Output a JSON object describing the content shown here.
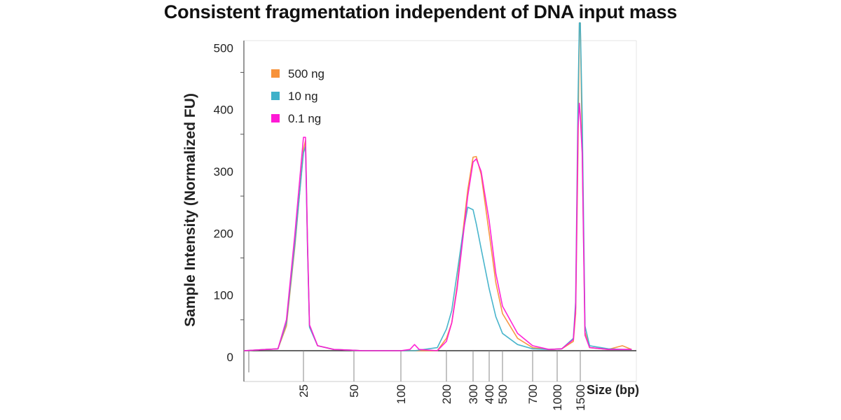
{
  "title": "Consistent fragmentation independent of DNA input mass",
  "chart_data": {
    "type": "line",
    "title": "Consistent fragmentation independent of DNA input mass",
    "xlabel": "Size (bp)",
    "ylabel": "Sample Intensity (Normalized FU)",
    "x_scale": "nonlinear (electrophoresis size ladder)",
    "x_ticks": [
      25,
      50,
      100,
      200,
      300,
      400,
      500,
      700,
      1000,
      1500
    ],
    "y_ticks": [
      0,
      100,
      200,
      300,
      400,
      500
    ],
    "ylim": [
      -35,
      530
    ],
    "grid": false,
    "legend_position": "top-left",
    "colors": {
      "500 ng": "#f7923a",
      "10 ng": "#3fb1c9",
      "0.1 ng": "#ff19d5"
    },
    "series": [
      {
        "name": "500 ng",
        "x": [
          18,
          22,
          23,
          24,
          25,
          26,
          27,
          28,
          32,
          40,
          60,
          80,
          100,
          130,
          180,
          200,
          220,
          240,
          260,
          280,
          300,
          320,
          350,
          400,
          450,
          500,
          600,
          700,
          900,
          1100,
          1350,
          1400,
          1450,
          1480,
          1500,
          1520,
          1550,
          1600,
          1800,
          1950,
          2050
        ],
        "y": [
          0,
          3,
          40,
          170,
          325,
          340,
          170,
          40,
          8,
          2,
          0,
          0,
          0,
          0,
          0,
          20,
          45,
          105,
          185,
          260,
          313,
          314,
          285,
          190,
          110,
          60,
          20,
          5,
          2,
          3,
          15,
          60,
          320,
          530,
          530,
          330,
          30,
          5,
          2,
          8,
          2
        ]
      },
      {
        "name": "10 ng",
        "x": [
          18,
          22,
          23,
          24,
          25,
          26,
          27,
          28,
          32,
          40,
          60,
          80,
          100,
          130,
          180,
          200,
          220,
          240,
          260,
          280,
          300,
          320,
          350,
          400,
          450,
          500,
          600,
          700,
          900,
          1100,
          1350,
          1400,
          1450,
          1480,
          1500,
          1520,
          1550,
          1600,
          1800,
          1950,
          2050
        ],
        "y": [
          0,
          3,
          45,
          175,
          320,
          330,
          165,
          38,
          8,
          2,
          0,
          0,
          0,
          0,
          5,
          35,
          65,
          125,
          185,
          232,
          228,
          205,
          165,
          100,
          55,
          28,
          10,
          3,
          2,
          3,
          20,
          80,
          400,
          530,
          530,
          380,
          40,
          8,
          3,
          2,
          2
        ]
      },
      {
        "name": "0.1 ng",
        "x": [
          18,
          22,
          23,
          24,
          25,
          26,
          27,
          28,
          32,
          40,
          60,
          80,
          100,
          120,
          130,
          140,
          180,
          200,
          220,
          240,
          260,
          280,
          300,
          320,
          350,
          400,
          450,
          500,
          600,
          700,
          900,
          1100,
          1350,
          1400,
          1450,
          1480,
          1500,
          1520,
          1550,
          1600,
          1800,
          1950,
          2050
        ],
        "y": [
          0,
          3,
          50,
          190,
          345,
          345,
          175,
          42,
          8,
          2,
          0,
          0,
          0,
          2,
          10,
          2,
          0,
          15,
          45,
          100,
          175,
          250,
          305,
          310,
          290,
          210,
          125,
          72,
          28,
          8,
          2,
          3,
          18,
          70,
          360,
          400,
          380,
          320,
          25,
          5,
          2,
          2,
          2
        ]
      }
    ]
  }
}
